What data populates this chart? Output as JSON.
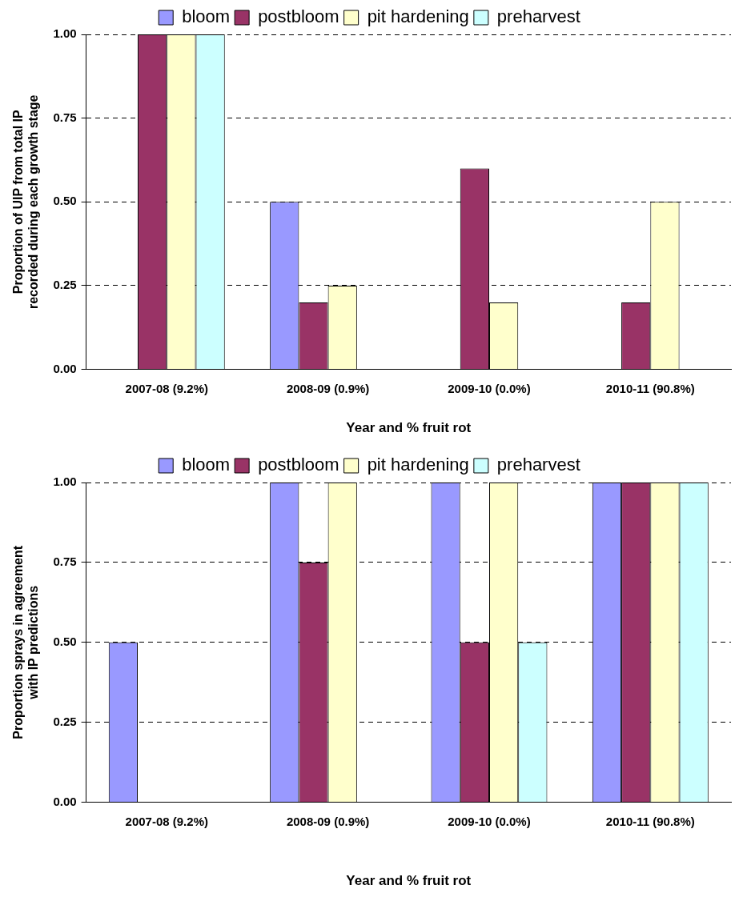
{
  "chart_data": [
    {
      "type": "bar",
      "categories": [
        "2007-08 (9.2%)",
        "2008-09 (0.9%)",
        "2009-10 (0.0%)",
        "2010-11 (90.8%)"
      ],
      "series": [
        {
          "name": "bloom",
          "color": "#9999ff",
          "values": [
            0,
            0.5,
            0,
            0
          ]
        },
        {
          "name": "postbloom",
          "color": "#993366",
          "values": [
            1,
            0.2,
            0.6,
            0.2
          ]
        },
        {
          "name": "pit hardening",
          "color": "#ffffcc",
          "values": [
            1,
            0.25,
            0.2,
            0.5
          ]
        },
        {
          "name": "preharvest",
          "color": "#ccffff",
          "values": [
            1,
            0,
            0,
            0
          ]
        }
      ],
      "xlabel": "Year and % fruit rot",
      "ylabel": "Proportion of UIP from total IP\nrecorded during each growth stage",
      "ylim": [
        0,
        1
      ],
      "yticks": [
        {
          "value": 0,
          "label": "0.00"
        },
        {
          "value": 0.25,
          "label": "0.25"
        },
        {
          "value": 0.5,
          "label": "0.50"
        },
        {
          "value": 0.75,
          "label": "0.75"
        },
        {
          "value": 1,
          "label": "1.00"
        }
      ],
      "grid": "y",
      "legend": "top"
    },
    {
      "type": "bar",
      "categories": [
        "2007-08 (9.2%)",
        "2008-09 (0.9%)",
        "2009-10 (0.0%)",
        "2010-11 (90.8%)"
      ],
      "series": [
        {
          "name": "bloom",
          "color": "#9999ff",
          "values": [
            0.5,
            1,
            1,
            1
          ]
        },
        {
          "name": "postbloom",
          "color": "#993366",
          "values": [
            0,
            0.75,
            0.5,
            1
          ]
        },
        {
          "name": "pit hardening",
          "color": "#ffffcc",
          "values": [
            0,
            1,
            1,
            1
          ]
        },
        {
          "name": "preharvest",
          "color": "#ccffff",
          "values": [
            0,
            0,
            0.5,
            1
          ]
        }
      ],
      "xlabel": "Year and % fruit rot",
      "ylabel": "Proportion sprays in agreement\nwith IP predictions",
      "ylim": [
        0,
        1
      ],
      "yticks": [
        {
          "value": 0,
          "label": "0.00"
        },
        {
          "value": 0.25,
          "label": "0.25"
        },
        {
          "value": 0.5,
          "label": "0.50"
        },
        {
          "value": 0.75,
          "label": "0.75"
        },
        {
          "value": 1,
          "label": "1.00"
        }
      ],
      "grid": "y",
      "legend": "top"
    }
  ]
}
